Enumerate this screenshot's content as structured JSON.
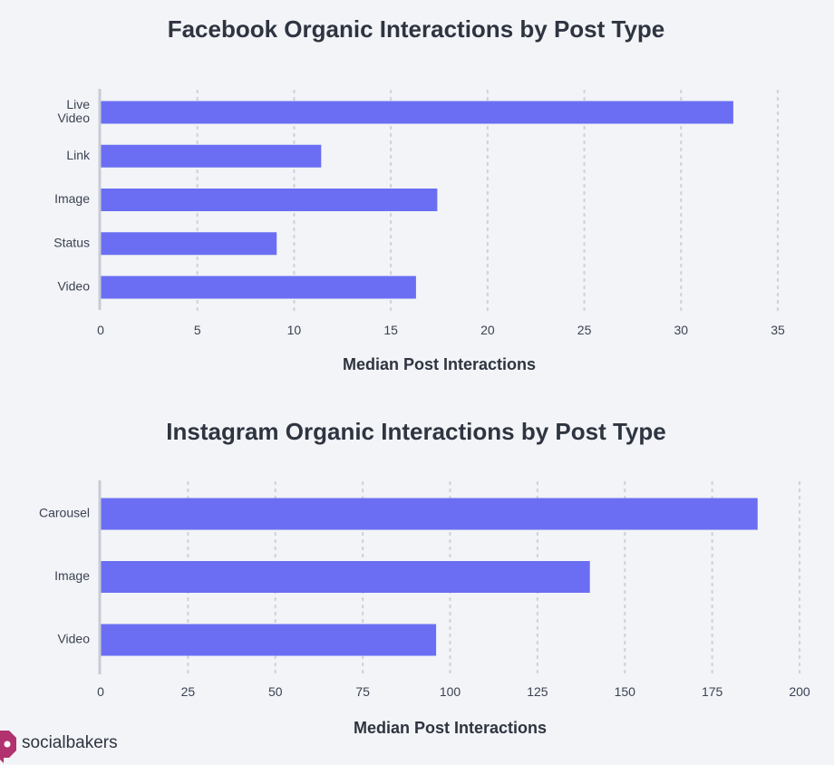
{
  "colors": {
    "bar": "#6b6ef2",
    "grid": "#cfd3d9",
    "axis": "#c8ccd3",
    "brand": "#b1326f"
  },
  "brand": {
    "name": "socialbakers",
    "icon": "socialbakers-logo-icon"
  },
  "chart_data": [
    {
      "type": "bar",
      "orientation": "horizontal",
      "title": "Facebook Organic Interactions by Post Type",
      "xlabel": "Median Post Interactions",
      "categories": [
        [
          "Live",
          "Video"
        ],
        [
          "Link"
        ],
        [
          "Image"
        ],
        [
          "Status"
        ],
        [
          "Video"
        ]
      ],
      "values": [
        32.7,
        11.4,
        17.4,
        9.1,
        16.3
      ],
      "xlim": [
        0,
        35
      ],
      "ticks": [
        0,
        5,
        10,
        15,
        20,
        25,
        30,
        35
      ],
      "grid": true
    },
    {
      "type": "bar",
      "orientation": "horizontal",
      "title": "Instagram Organic Interactions by Post Type",
      "xlabel": "Median Post Interactions",
      "categories": [
        [
          "Carousel"
        ],
        [
          "Image"
        ],
        [
          "Video"
        ]
      ],
      "values": [
        188,
        140,
        96
      ],
      "xlim": [
        0,
        200
      ],
      "ticks": [
        0,
        25,
        50,
        75,
        100,
        125,
        150,
        175,
        200
      ],
      "grid": true
    }
  ]
}
